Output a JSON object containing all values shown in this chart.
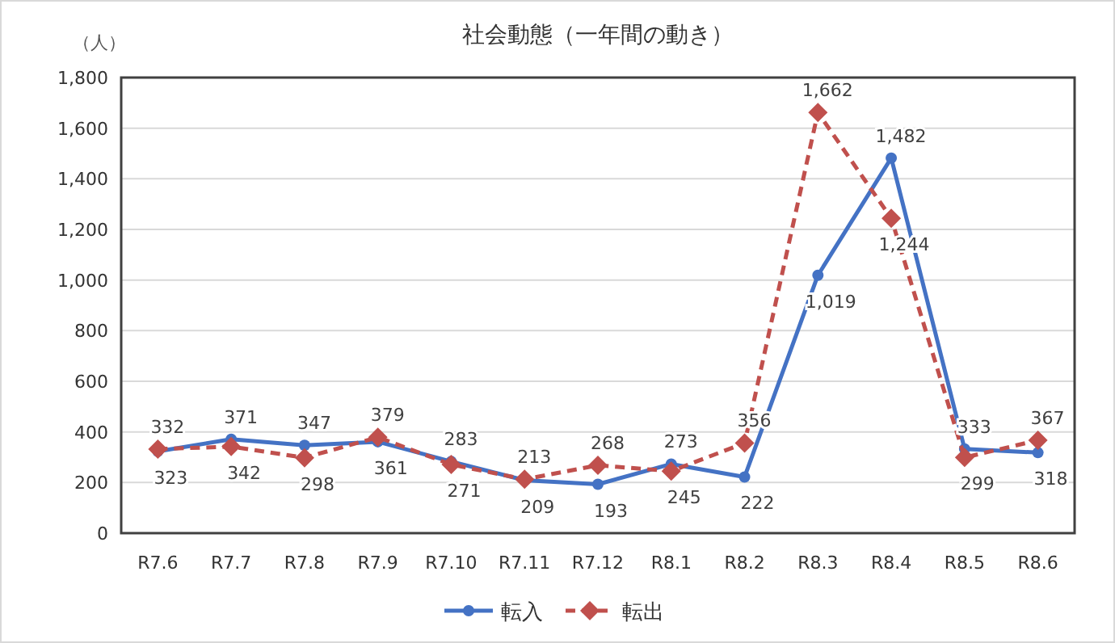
{
  "chart_data": {
    "type": "line",
    "title": "社会動態（一年間の動き）",
    "ylabel": "（人）",
    "categories": [
      "R7.6",
      "R7.7",
      "R7.8",
      "R7.9",
      "R7.10",
      "R7.11",
      "R7.12",
      "R8.1",
      "R8.2",
      "R8.3",
      "R8.4",
      "R8.5",
      "R8.6"
    ],
    "series": [
      {
        "name": "転入",
        "color": "#4472c4",
        "marker": "circle",
        "line_style": "solid",
        "values": [
          323,
          371,
          347,
          361,
          283,
          209,
          193,
          273,
          222,
          1019,
          1482,
          333,
          318
        ],
        "value_labels": [
          "323",
          "371",
          "347",
          "361",
          "283",
          "209",
          "193",
          "273",
          "222",
          "1,019",
          "1,482",
          "333",
          "318"
        ]
      },
      {
        "name": "転出",
        "color": "#c0504d",
        "marker": "diamond",
        "line_style": "dashed",
        "values": [
          332,
          342,
          298,
          379,
          271,
          213,
          268,
          245,
          356,
          1662,
          1244,
          299,
          367
        ],
        "value_labels": [
          "332",
          "342",
          "298",
          "379",
          "271",
          "213",
          "268",
          "245",
          "356",
          "1,662",
          "1,244",
          "299",
          "367"
        ]
      }
    ],
    "ylim": [
      0,
      1800
    ],
    "yticks": [
      {
        "value": 0,
        "label": "0"
      },
      {
        "value": 200,
        "label": "200"
      },
      {
        "value": 400,
        "label": "400"
      },
      {
        "value": 600,
        "label": "600"
      },
      {
        "value": 800,
        "label": "800"
      },
      {
        "value": 1000,
        "label": "1,000"
      },
      {
        "value": 1200,
        "label": "1,200"
      },
      {
        "value": 1400,
        "label": "1,400"
      },
      {
        "value": 1600,
        "label": "1,600"
      },
      {
        "value": 1800,
        "label": "1,800"
      }
    ],
    "grid": "y",
    "legend": "bottom"
  }
}
